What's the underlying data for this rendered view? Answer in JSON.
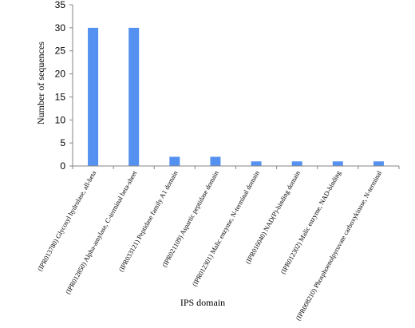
{
  "chart_data": {
    "type": "bar",
    "xlabel": "IPS domain",
    "ylabel": "Number of sequences",
    "ylim": [
      0,
      35
    ],
    "yticks": [
      0,
      5,
      10,
      15,
      20,
      25,
      30,
      35
    ],
    "grid": false,
    "legend": "none",
    "bar_color": "#5591f0",
    "categories": [
      "(IPR013780) Glycosyl hydrolase, all-beta",
      "(IPR012850) Alpha-amylase, C-terminal beta-sheet",
      "(IPR033121) Peptidase family A1 domain",
      "(IPR021109) Aspartic peptidase domain",
      "(IPR012301) Malic enzyme, N-terminal domain",
      "(IPR016040) NAD(P)-binding domain",
      "(IPR012302) Malic enzyme, NAD-binding",
      "(IPR008210) Phosphoenolpyruvate carboxykinase, N-terminal"
    ],
    "values": [
      30,
      30,
      2,
      2,
      1,
      1,
      1,
      1
    ]
  }
}
